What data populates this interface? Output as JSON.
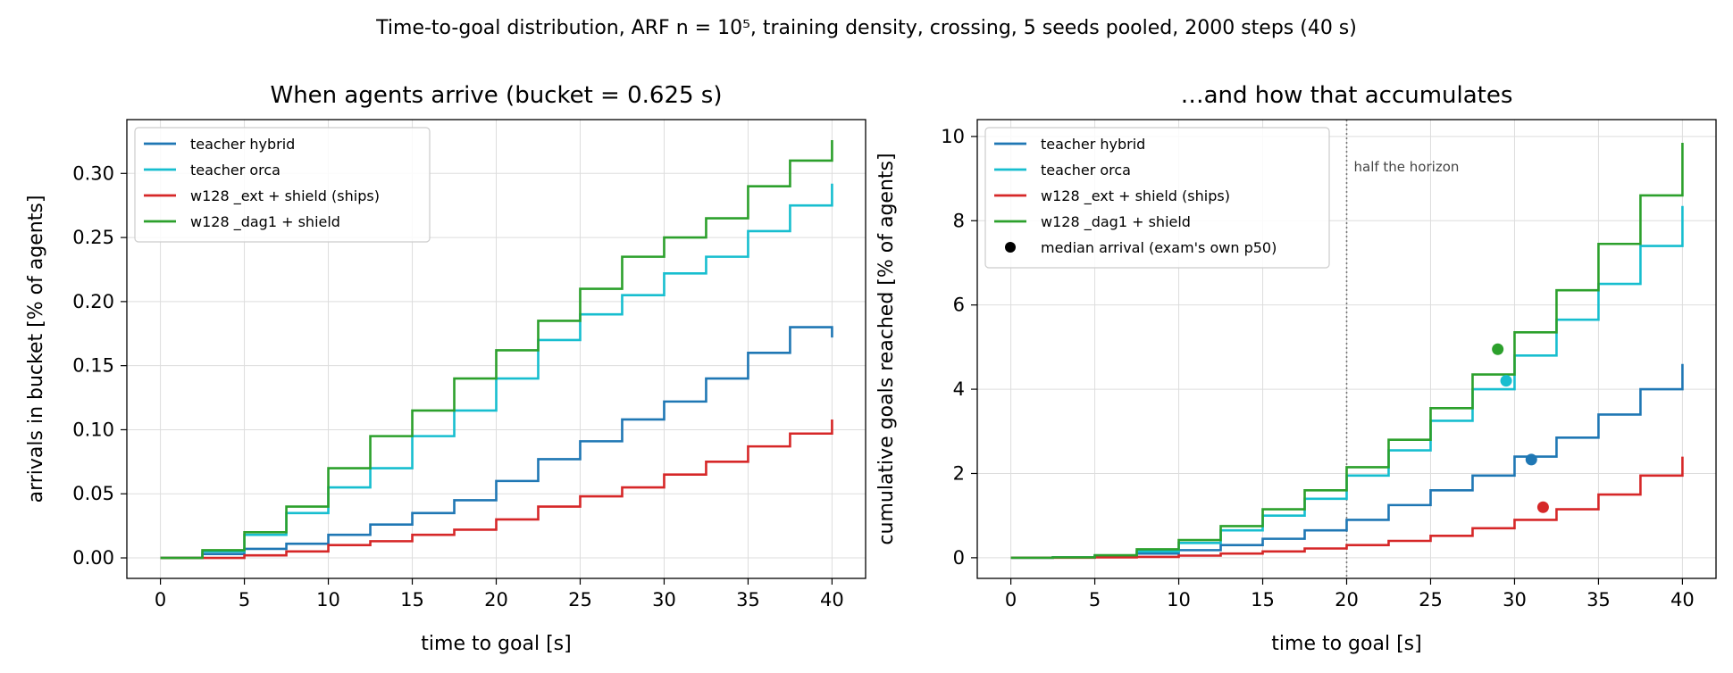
{
  "figure_title": "Time-to-goal distribution, ARF n = 10⁵, training density, crossing, 5 seeds pooled, 2000 steps (40 s)",
  "chart_data": [
    {
      "type": "line",
      "step": true,
      "title": "When agents arrive (bucket = 0.625 s)",
      "xlabel": "time to goal [s]",
      "ylabel": "arrivals in bucket [% of agents]",
      "xlim": [
        -2,
        42
      ],
      "ylim": [
        -0.016,
        0.342
      ],
      "xticks": [
        0,
        5,
        10,
        15,
        20,
        25,
        30,
        35,
        40
      ],
      "yticks": [
        0.0,
        0.05,
        0.1,
        0.15,
        0.2,
        0.25,
        0.3
      ],
      "ytick_labels": [
        "0.00",
        "0.05",
        "0.10",
        "0.15",
        "0.20",
        "0.25",
        "0.30"
      ],
      "grid": true,
      "legend_position": "upper left",
      "x": [
        0,
        2.5,
        5,
        7.5,
        10,
        12.5,
        15,
        17.5,
        20,
        22.5,
        25,
        27.5,
        30,
        32.5,
        35,
        37.5,
        40
      ],
      "series": [
        {
          "name": "teacher hybrid",
          "color": "#1f77b4",
          "values": [
            0,
            0.003,
            0.007,
            0.011,
            0.018,
            0.026,
            0.035,
            0.045,
            0.06,
            0.077,
            0.091,
            0.108,
            0.122,
            0.14,
            0.16,
            0.18,
            0.172
          ]
        },
        {
          "name": "teacher orca",
          "color": "#17becf",
          "values": [
            0,
            0.005,
            0.018,
            0.035,
            0.055,
            0.07,
            0.095,
            0.115,
            0.14,
            0.17,
            0.19,
            0.205,
            0.222,
            0.235,
            0.255,
            0.275,
            0.292
          ]
        },
        {
          "name": "w128 _ext + shield (ships)",
          "color": "#d62728",
          "values": [
            0,
            0.0,
            0.002,
            0.005,
            0.01,
            0.013,
            0.018,
            0.022,
            0.03,
            0.04,
            0.048,
            0.055,
            0.065,
            0.075,
            0.087,
            0.097,
            0.108
          ]
        },
        {
          "name": "w128 _dag1 + shield",
          "color": "#2ca02c",
          "values": [
            0,
            0.006,
            0.02,
            0.04,
            0.07,
            0.095,
            0.115,
            0.14,
            0.162,
            0.185,
            0.21,
            0.235,
            0.25,
            0.265,
            0.29,
            0.31,
            0.326
          ]
        }
      ]
    },
    {
      "type": "line",
      "step": true,
      "title": "…and how that accumulates",
      "xlabel": "time to goal [s]",
      "ylabel": "cumulative goals reached [% of agents]",
      "xlim": [
        -2,
        42
      ],
      "ylim": [
        -0.49,
        10.4
      ],
      "xticks": [
        0,
        5,
        10,
        15,
        20,
        25,
        30,
        35,
        40
      ],
      "yticks": [
        0,
        2,
        4,
        6,
        8,
        10
      ],
      "ytick_labels": [
        "0",
        "2",
        "4",
        "6",
        "8",
        "10"
      ],
      "grid": true,
      "legend_position": "upper left",
      "annotation": {
        "text": "half the horizon",
        "x": 20
      },
      "x": [
        0,
        2.5,
        5,
        7.5,
        10,
        12.5,
        15,
        17.5,
        20,
        22.5,
        25,
        27.5,
        30,
        32.5,
        35,
        37.5,
        40
      ],
      "series": [
        {
          "name": "teacher hybrid",
          "color": "#1f77b4",
          "values": [
            0,
            0.005,
            0.04,
            0.1,
            0.18,
            0.3,
            0.45,
            0.65,
            0.9,
            1.25,
            1.6,
            1.95,
            2.4,
            2.85,
            3.4,
            4.0,
            4.6
          ],
          "median": [
            31,
            2.33
          ]
        },
        {
          "name": "teacher orca",
          "color": "#17becf",
          "values": [
            0,
            0.01,
            0.05,
            0.15,
            0.35,
            0.65,
            1.0,
            1.4,
            1.95,
            2.55,
            3.25,
            4.0,
            4.8,
            5.65,
            6.5,
            7.4,
            8.35
          ],
          "median": [
            29.5,
            4.2
          ]
        },
        {
          "name": "w128 _ext + shield (ships)",
          "color": "#d62728",
          "values": [
            0,
            0.0,
            0.01,
            0.02,
            0.05,
            0.1,
            0.15,
            0.22,
            0.3,
            0.4,
            0.52,
            0.7,
            0.9,
            1.15,
            1.5,
            1.95,
            2.4
          ],
          "median": [
            31.7,
            1.2
          ]
        },
        {
          "name": "w128 _dag1 + shield",
          "color": "#2ca02c",
          "values": [
            0,
            0.01,
            0.06,
            0.2,
            0.42,
            0.75,
            1.15,
            1.6,
            2.15,
            2.8,
            3.55,
            4.35,
            5.35,
            6.35,
            7.45,
            8.6,
            9.85
          ],
          "median": [
            29,
            4.95
          ]
        }
      ],
      "median_marker_label": "median arrival (exam's own p50)"
    }
  ]
}
